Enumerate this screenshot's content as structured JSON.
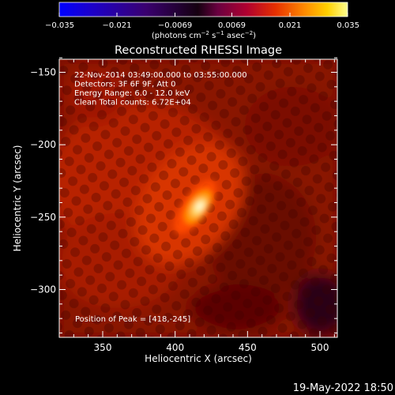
{
  "chart_data": {
    "type": "heatmap",
    "title": "Reconstructed RHESSI Image",
    "xlabel": "Heliocentric X (arcsec)",
    "ylabel": "Heliocentric Y (arcsec)",
    "xlim": [
      320,
      512
    ],
    "ylim": [
      -333,
      -141
    ],
    "x_ticks": [
      350,
      400,
      450,
      500
    ],
    "y_ticks": [
      -150,
      -200,
      -250,
      -300
    ],
    "colorbar": {
      "min": -0.035,
      "max": 0.035,
      "ticks": [
        -0.035,
        -0.021,
        -0.0069,
        0.0069,
        0.021,
        0.035
      ],
      "tick_labels": [
        "−0.035",
        "−0.021",
        "−0.0069",
        "0.0069",
        "0.021",
        "0.035"
      ],
      "label_main": "(photons cm",
      "label_exp1": "−2",
      "label_mid": " s",
      "label_exp2": "−1",
      "label_tail": " asec",
      "label_exp3": "−2",
      "label_close": ")"
    },
    "info_lines": [
      "22-Nov-2014 03:49:00.000 to 03:55:00.000",
      "Detectors: 3F 6F 9F, Att 0",
      "Energy Range: 6.0 - 12.0 keV",
      "Clean    Total counts: 6.72E+04"
    ],
    "peak_label": "Position of Peak = [418,-245]",
    "peak": {
      "x": 418,
      "y": -245
    },
    "timestamp": "19-May-2022 18:50",
    "colors": {
      "background": "#000000",
      "colormap": [
        "#0000ff",
        "#000000",
        "#7a0000",
        "#d40000",
        "#ff6a00",
        "#ffd200",
        "#ffffff"
      ]
    }
  }
}
